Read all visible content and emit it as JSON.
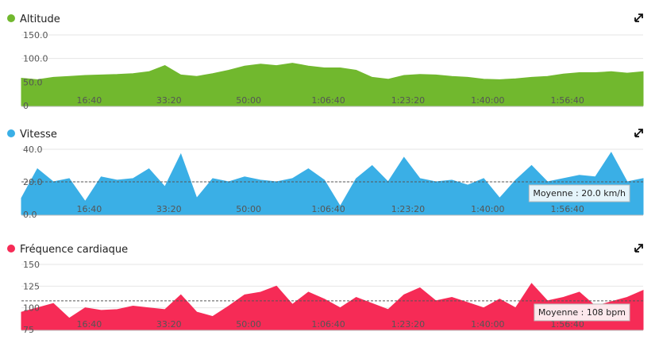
{
  "chart_data": [
    {
      "type": "area",
      "title": "Altitude",
      "color": "#71b82e",
      "x": [
        0,
        200,
        400,
        600,
        800,
        1000,
        1200,
        1400,
        1600,
        1800,
        2000,
        2200,
        2400,
        2600,
        2800,
        3000,
        3200,
        3400,
        3600,
        3800,
        4000,
        4200,
        4400,
        4600,
        4800,
        5000,
        5200,
        5400,
        5600,
        5800,
        6000,
        6200,
        6400,
        6600,
        6800,
        7000,
        7200,
        7400,
        7600,
        7800
      ],
      "values": [
        58,
        55,
        60,
        62,
        64,
        65,
        66,
        68,
        72,
        85,
        65,
        62,
        68,
        75,
        84,
        88,
        85,
        90,
        84,
        80,
        80,
        75,
        60,
        56,
        64,
        66,
        65,
        62,
        60,
        56,
        55,
        57,
        60,
        62,
        67,
        70,
        70,
        72,
        69,
        72
      ],
      "xlim": [
        0,
        7800
      ],
      "xticks": [
        {
          "value": 1000,
          "label": "16:40"
        },
        {
          "value": 2000,
          "label": "33:20"
        },
        {
          "value": 3000,
          "label": "50:00"
        },
        {
          "value": 4000,
          "label": "1:06:40"
        },
        {
          "value": 5000,
          "label": "1:23:20"
        },
        {
          "value": 6000,
          "label": "1:40:00"
        },
        {
          "value": 7000,
          "label": "1:56:40"
        }
      ],
      "ylim": [
        0,
        150
      ],
      "yticks": [
        0,
        {
          "value": 50,
          "label": "50.0"
        },
        {
          "value": 100,
          "label": "100.0"
        },
        {
          "value": 150,
          "label": "150.0"
        }
      ],
      "grid": true
    },
    {
      "type": "area",
      "title": "Vitesse",
      "color": "#3aafe6",
      "x": [
        0,
        200,
        400,
        600,
        800,
        1000,
        1200,
        1400,
        1600,
        1800,
        2000,
        2200,
        2400,
        2600,
        2800,
        3000,
        3200,
        3400,
        3600,
        3800,
        4000,
        4200,
        4400,
        4600,
        4800,
        5000,
        5200,
        5400,
        5600,
        5800,
        6000,
        6200,
        6400,
        6600,
        6800,
        7000,
        7200,
        7400,
        7600,
        7800
      ],
      "values": [
        10,
        28,
        20,
        22,
        8,
        23,
        21,
        22,
        28,
        17,
        37,
        10,
        22,
        20,
        23,
        21,
        20,
        22,
        28,
        21,
        5,
        22,
        30,
        20,
        35,
        22,
        20,
        21,
        18,
        22,
        10,
        21,
        30,
        20,
        22,
        24,
        23,
        38,
        20,
        22
      ],
      "xlim": [
        0,
        7800
      ],
      "xticks": [
        {
          "value": 1000,
          "label": "16:40"
        },
        {
          "value": 2000,
          "label": "33:20"
        },
        {
          "value": 3000,
          "label": "50:00"
        },
        {
          "value": 4000,
          "label": "1:06:40"
        },
        {
          "value": 5000,
          "label": "1:23:20"
        },
        {
          "value": 6000,
          "label": "1:40:00"
        },
        {
          "value": 7000,
          "label": "1:56:40"
        }
      ],
      "ylim": [
        0,
        40
      ],
      "yticks": [
        {
          "value": 0,
          "label": "0.0"
        },
        {
          "value": 20,
          "label": "20.0"
        },
        {
          "value": 40,
          "label": "40.0"
        }
      ],
      "mean": 20,
      "mean_label": "Moyenne : 20.0 km/h",
      "grid": true
    },
    {
      "type": "area",
      "title": "Fréquence cardiaque",
      "color": "#f62b56",
      "x": [
        0,
        200,
        400,
        600,
        800,
        1000,
        1200,
        1400,
        1600,
        1800,
        2000,
        2200,
        2400,
        2600,
        2800,
        3000,
        3200,
        3400,
        3600,
        3800,
        4000,
        4200,
        4400,
        4600,
        4800,
        5000,
        5200,
        5400,
        5600,
        5800,
        6000,
        6200,
        6400,
        6600,
        6800,
        7000,
        7200,
        7400,
        7600,
        7800
      ],
      "values": [
        95,
        100,
        105,
        88,
        100,
        97,
        98,
        102,
        100,
        98,
        115,
        95,
        90,
        102,
        115,
        118,
        125,
        104,
        118,
        110,
        100,
        112,
        105,
        98,
        115,
        123,
        108,
        112,
        106,
        100,
        110,
        100,
        128,
        108,
        112,
        118,
        102,
        107,
        112,
        120
      ],
      "xlim": [
        0,
        7800
      ],
      "xticks": [
        {
          "value": 1000,
          "label": "16:40"
        },
        {
          "value": 2000,
          "label": "33:20"
        },
        {
          "value": 3000,
          "label": "50:00"
        },
        {
          "value": 4000,
          "label": "1:06:40"
        },
        {
          "value": 5000,
          "label": "1:23:20"
        },
        {
          "value": 6000,
          "label": "1:40:00"
        },
        {
          "value": 7000,
          "label": "1:56:40"
        }
      ],
      "ylim": [
        75,
        150
      ],
      "yticks": [
        75,
        100,
        125,
        150
      ],
      "mean": 108,
      "mean_label": "Moyenne : 108 bpm",
      "grid": true
    }
  ]
}
